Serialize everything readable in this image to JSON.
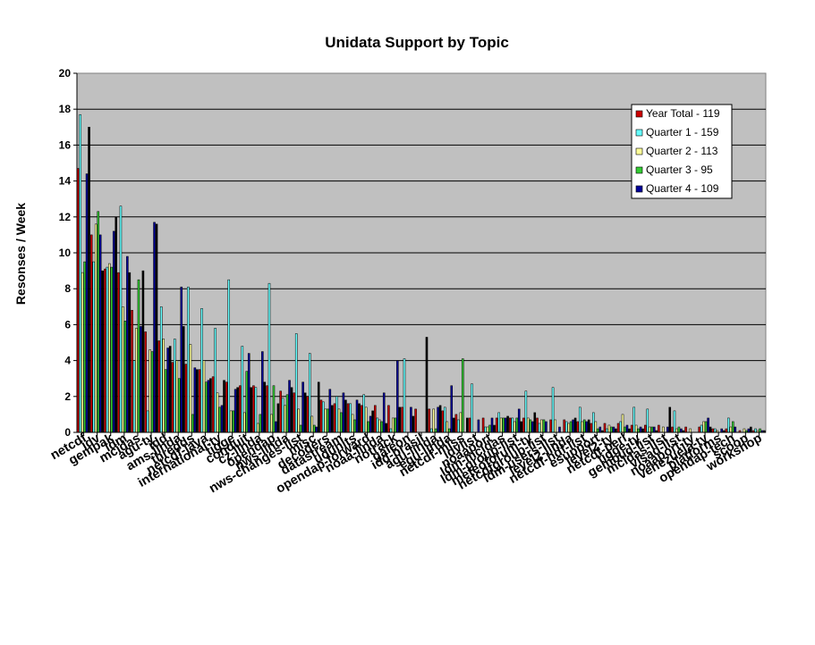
{
  "chart_data": {
    "type": "bar",
    "title": "Unidata Support by Topic",
    "ylabel": "Resonses / Week",
    "xlabel": "",
    "ylim": [
      0,
      20
    ],
    "yticks": [
      0,
      2,
      4,
      6,
      8,
      10,
      12,
      14,
      16,
      18,
      20
    ],
    "grid": true,
    "legend_position": "top-right",
    "background": "#c0c0c0",
    "categories": [
      "netcdf",
      "idv",
      "gempak",
      "ldm",
      "mcidas",
      "agu-ty",
      "idd",
      "ams-linda",
      "thredds",
      "netcdf-java",
      "international-ty",
      "tigge",
      "conduit",
      "cz-linda",
      "opendap",
      "nws-linda",
      "nws-changes-list",
      "misc",
      "decoders",
      "datastream",
      "udunits",
      "opendap-forward",
      "noaa-linda",
      "notrack",
      "galeon",
      "idd-brasil",
      "agu-linda",
      "egu-linda",
      "netcdf-miss",
      "idvlist",
      "noaaport",
      "ldm-mcidas",
      "ldm-group-list",
      "meteoforum-ty",
      "netcdfgroup-list",
      "ldm-users-list",
      "level2-linda",
      "netcdf-hdf-list",
      "esupport",
      "level2-ty",
      "netcdf-perl",
      "tigge-ty",
      "gembud-list",
      "mcidas-list",
      "visad-list",
      "noaaport-ty",
      "venezuela-ty",
      "platforms",
      "opendap-tech",
      "scoop",
      "workshop"
    ],
    "series": [
      {
        "name": "Year Total - 119",
        "color": "#cc0000",
        "values": [
          14.7,
          11.0,
          9.1,
          8.9,
          6.8,
          5.6,
          5.1,
          3.9,
          3.8,
          3.5,
          3.1,
          2.8,
          2.6,
          2.6,
          2.6,
          2.3,
          2.2,
          2.0,
          1.8,
          1.6,
          1.6,
          1.5,
          1.5,
          1.5,
          1.4,
          1.3,
          1.3,
          1.2,
          1.0,
          0.8,
          0.8,
          0.8,
          0.8,
          0.8,
          0.8,
          0.7,
          0.7,
          0.6,
          0.5,
          0.5,
          0.5,
          0.4,
          0.4,
          0.4,
          0.3,
          0.3,
          0.3,
          0.2,
          0.2,
          0.1,
          0.1
        ]
      },
      {
        "name": "Quarter 1 - 159",
        "color": "#66ffff",
        "values": [
          17.7,
          9.5,
          9.2,
          12.6,
          4.0,
          1.2,
          7.0,
          5.2,
          8.1,
          6.9,
          5.8,
          8.5,
          4.8,
          2.5,
          8.3,
          1.9,
          5.5,
          4.4,
          1.7,
          2.0,
          1.6,
          2.1,
          0.8,
          0.2,
          4.1,
          0.0,
          0.2,
          1.4,
          0.7,
          2.7,
          0.3,
          1.1,
          0.8,
          2.3,
          0.5,
          2.5,
          0.6,
          1.4,
          1.1,
          0.2,
          0.6,
          1.4,
          1.3,
          0.0,
          1.2,
          0.0,
          0.4,
          0.2,
          0.8,
          0.0,
          0.2
        ]
      },
      {
        "name": "Quarter 2 - 113",
        "color": "#ffff99",
        "values": [
          8.9,
          11.6,
          9.4,
          7.0,
          5.8,
          4.6,
          5.2,
          4.0,
          4.9,
          4.0,
          2.2,
          1.2,
          1.1,
          0.5,
          1.0,
          1.5,
          1.3,
          0.9,
          1.3,
          1.3,
          1.0,
          1.4,
          0.7,
          0.8,
          0.0,
          0.0,
          1.3,
          0.6,
          1.1,
          0.0,
          0.3,
          0.8,
          0.6,
          0.8,
          0.7,
          0.7,
          0.5,
          0.6,
          0.6,
          0.4,
          1.0,
          0.4,
          0.3,
          0.3,
          0.2,
          0.2,
          0.6,
          0.1,
          0.3,
          0.2,
          0.1
        ]
      },
      {
        "name": "Quarter 3 - 95",
        "color": "#33cc33",
        "values": [
          9.5,
          12.3,
          9.2,
          6.2,
          8.5,
          4.5,
          3.5,
          3.0,
          1.0,
          2.8,
          1.4,
          1.2,
          3.4,
          1.0,
          2.6,
          2.1,
          0.4,
          0.4,
          1.3,
          1.1,
          0.7,
          0.6,
          0.6,
          0.8,
          0.0,
          0.0,
          0.2,
          0.2,
          4.1,
          0.0,
          0.4,
          0.8,
          0.8,
          0.7,
          0.7,
          0.0,
          0.6,
          0.7,
          0.2,
          0.3,
          0.3,
          0.2,
          0.3,
          0.0,
          0.3,
          0.0,
          0.6,
          0.0,
          0.6,
          0.1,
          0.2
        ]
      },
      {
        "name": "Quarter 4 - 109",
        "color": "#000099",
        "values": [
          14.4,
          11.0,
          11.2,
          9.8,
          5.9,
          11.7,
          4.7,
          8.1,
          3.6,
          2.9,
          1.5,
          2.4,
          4.4,
          4.5,
          0.6,
          2.9,
          2.8,
          0.3,
          2.4,
          2.2,
          1.8,
          0.9,
          2.2,
          4.0,
          1.4,
          0.0,
          1.4,
          2.6,
          0.0,
          0.7,
          0.8,
          0.8,
          1.3,
          0.6,
          0.6,
          0.3,
          0.7,
          0.6,
          0.3,
          0.3,
          0.4,
          0.3,
          0.3,
          0.3,
          0.2,
          0.0,
          0.8,
          0.2,
          0.3,
          0.2,
          0.1
        ]
      },
      {
        "name": "",
        "color": "#000000",
        "values": [
          17.0,
          9.0,
          12.0,
          8.9,
          9.0,
          11.6,
          4.8,
          5.9,
          3.5,
          3.0,
          2.9,
          2.5,
          2.5,
          2.8,
          1.6,
          2.5,
          2.2,
          2.8,
          1.5,
          1.8,
          1.6,
          1.2,
          0.5,
          1.4,
          0.9,
          5.3,
          1.5,
          0.8,
          0.8,
          0.0,
          0.4,
          0.9,
          0.6,
          1.1,
          0.0,
          0.0,
          0.8,
          0.7,
          0.1,
          0.2,
          0.2,
          0.2,
          0.1,
          1.4,
          0.1,
          0.0,
          0.3,
          0.1,
          0.0,
          0.3,
          0.1
        ]
      }
    ]
  }
}
